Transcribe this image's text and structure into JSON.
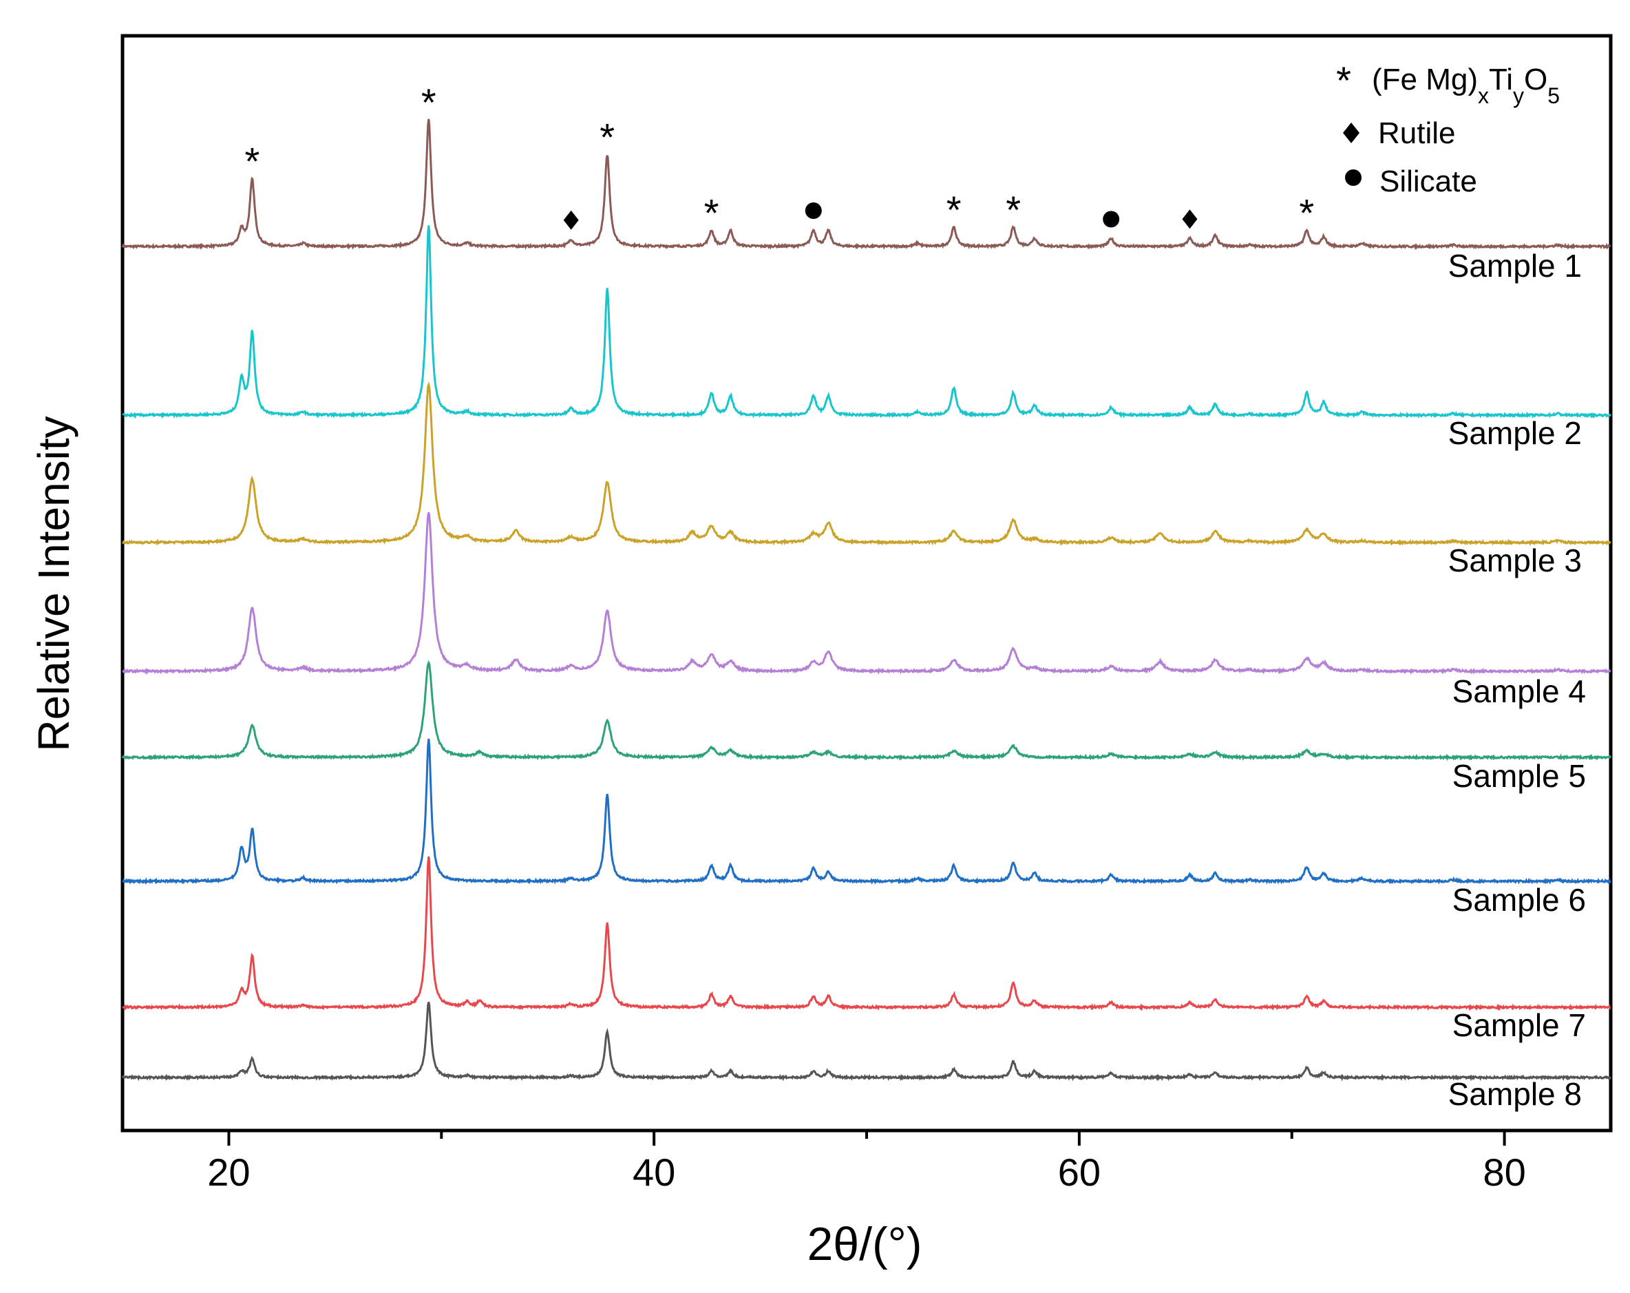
{
  "chart_data": {
    "type": "line",
    "title": "",
    "xlabel": "2θ/(°)",
    "ylabel": "Relative Intensity",
    "xlim": [
      15,
      85
    ],
    "xticks": [
      20,
      40,
      60,
      80
    ],
    "x_minor_ticks": [
      30,
      50,
      70
    ],
    "legend": {
      "position": "top-right",
      "entries": [
        {
          "symbol": "*",
          "label_main": "(Fe Mg)",
          "sub1": "x",
          "mid": "Ti",
          "sub2": "y",
          "end": "O",
          "sub3": "5"
        },
        {
          "symbol": "diamond",
          "label": "Rutile"
        },
        {
          "symbol": "circle",
          "label": "Silicate"
        }
      ]
    },
    "peak_positions_2theta": [
      20.6,
      21.1,
      23.5,
      29.4,
      31.2,
      31.8,
      33.5,
      36.1,
      37.8,
      41.8,
      42.7,
      43.6,
      47.5,
      48.2,
      52.4,
      54.1,
      56.9,
      57.9,
      61.5,
      63.8,
      65.2,
      66.4,
      68.0,
      70.7,
      71.5,
      73.3,
      77.6,
      82.5
    ],
    "series": [
      {
        "name": "Sample 1",
        "color": "#8b5a55",
        "intensities": [
          0.1,
          0.42,
          0.02,
          0.8,
          0.02,
          0.0,
          0.0,
          0.04,
          0.58,
          0.0,
          0.1,
          0.1,
          0.1,
          0.1,
          0.02,
          0.12,
          0.12,
          0.05,
          0.05,
          0.0,
          0.05,
          0.07,
          0.01,
          0.1,
          0.06,
          0.02,
          0.01,
          0.01
        ]
      },
      {
        "name": "Sample 2",
        "color": "#17c5cc",
        "intensities": [
          0.22,
          0.52,
          0.02,
          1.2,
          0.02,
          0.0,
          0.0,
          0.04,
          0.8,
          0.0,
          0.14,
          0.12,
          0.12,
          0.12,
          0.02,
          0.17,
          0.14,
          0.06,
          0.05,
          0.0,
          0.05,
          0.07,
          0.01,
          0.14,
          0.08,
          0.02,
          0.01,
          0.01
        ]
      },
      {
        "name": "Sample 3",
        "color": "#c9a227",
        "intensities": [
          0.0,
          0.4,
          0.02,
          1.0,
          0.03,
          0.0,
          0.07,
          0.03,
          0.38,
          0.06,
          0.1,
          0.06,
          0.05,
          0.12,
          0.0,
          0.07,
          0.14,
          0.02,
          0.03,
          0.06,
          0.0,
          0.07,
          0.01,
          0.08,
          0.05,
          0.01,
          0.01,
          0.01
        ]
      },
      {
        "name": "Sample 4",
        "color": "#b57fd6",
        "intensities": [
          0.0,
          0.4,
          0.02,
          1.0,
          0.03,
          0.0,
          0.07,
          0.03,
          0.38,
          0.06,
          0.1,
          0.06,
          0.05,
          0.12,
          0.0,
          0.07,
          0.14,
          0.02,
          0.03,
          0.06,
          0.0,
          0.07,
          0.01,
          0.08,
          0.05,
          0.01,
          0.01,
          0.01
        ]
      },
      {
        "name": "Sample 5",
        "color": "#2ca27a",
        "intensities": [
          0.0,
          0.2,
          0.0,
          0.6,
          0.0,
          0.03,
          0.0,
          0.0,
          0.23,
          0.0,
          0.06,
          0.04,
          0.03,
          0.03,
          0.0,
          0.04,
          0.07,
          0.0,
          0.02,
          0.0,
          0.02,
          0.03,
          0.0,
          0.04,
          0.02,
          0.0,
          0.0,
          0.0
        ]
      },
      {
        "name": "Sample 6",
        "color": "#1f6fc5",
        "intensities": [
          0.2,
          0.32,
          0.02,
          0.9,
          0.0,
          0.0,
          0.0,
          0.02,
          0.55,
          0.0,
          0.1,
          0.1,
          0.08,
          0.06,
          0.02,
          0.1,
          0.12,
          0.05,
          0.04,
          0.0,
          0.04,
          0.05,
          0.01,
          0.09,
          0.05,
          0.02,
          0.01,
          0.01
        ]
      },
      {
        "name": "Sample 7",
        "color": "#e8484b",
        "intensities": [
          0.1,
          0.32,
          0.01,
          0.95,
          0.03,
          0.04,
          0.0,
          0.02,
          0.53,
          0.0,
          0.08,
          0.07,
          0.07,
          0.07,
          0.0,
          0.08,
          0.16,
          0.04,
          0.03,
          0.0,
          0.03,
          0.05,
          0.0,
          0.07,
          0.04,
          0.0,
          0.0,
          0.0
        ]
      },
      {
        "name": "Sample 8",
        "color": "#555555",
        "intensities": [
          0.04,
          0.12,
          0.0,
          0.48,
          0.01,
          0.0,
          0.0,
          0.01,
          0.29,
          0.0,
          0.04,
          0.04,
          0.04,
          0.04,
          0.0,
          0.05,
          0.1,
          0.04,
          0.03,
          0.0,
          0.02,
          0.03,
          0.0,
          0.06,
          0.03,
          0.0,
          0.0,
          0.0
        ]
      }
    ],
    "phase_markers": [
      {
        "x": 21.1,
        "symbol": "*"
      },
      {
        "x": 29.4,
        "symbol": "*"
      },
      {
        "x": 36.1,
        "symbol": "diamond"
      },
      {
        "x": 37.8,
        "symbol": "*"
      },
      {
        "x": 42.7,
        "symbol": "*"
      },
      {
        "x": 47.5,
        "symbol": "circle"
      },
      {
        "x": 54.1,
        "symbol": "*"
      },
      {
        "x": 56.9,
        "symbol": "*"
      },
      {
        "x": 61.5,
        "symbol": "circle"
      },
      {
        "x": 65.2,
        "symbol": "diamond"
      },
      {
        "x": 70.7,
        "symbol": "*"
      }
    ]
  }
}
